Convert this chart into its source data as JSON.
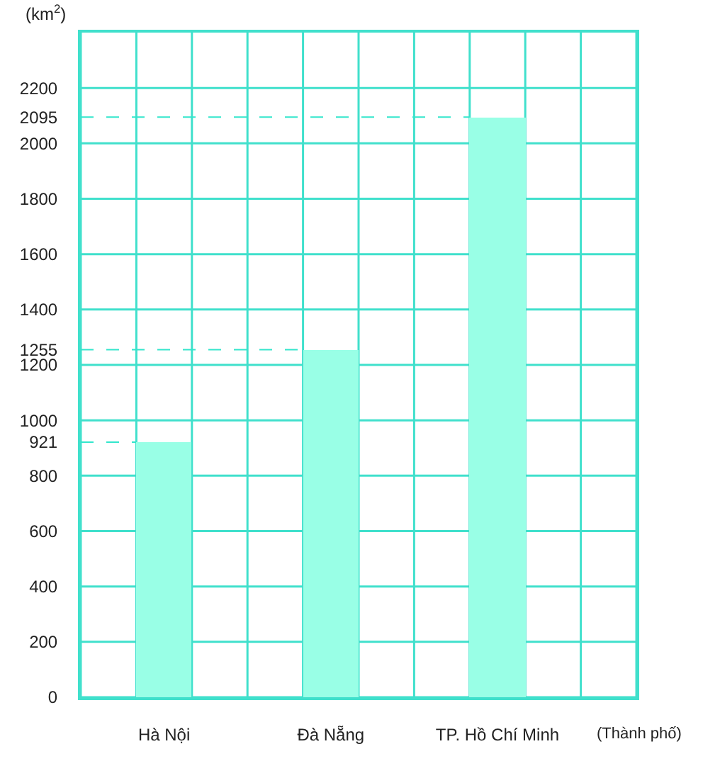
{
  "chart_data": {
    "type": "bar",
    "categories": [
      "Hà Nội",
      "Đà Nẵng",
      "TP. Hồ Chí Minh"
    ],
    "values": [
      921,
      1255,
      2095
    ],
    "color": "#99ffe6",
    "ylabel": "(km$^{2}$)",
    "xlabel": "(Thành phố)",
    "ylim": [
      0,
      2400
    ],
    "yticks": [
      0,
      200,
      400,
      600,
      800,
      921,
      1000,
      1200,
      1255,
      1400,
      1600,
      1800,
      2000,
      2095,
      2200
    ],
    "grid": true,
    "ref_lines": [
      {
        "axis": "y",
        "value": 921,
        "label": null,
        "line_style": "dashed",
        "color": "#33e6cc"
      },
      {
        "axis": "y",
        "value": 1255,
        "label": null,
        "line_style": "dashed",
        "color": "#33e6cc"
      },
      {
        "axis": "y",
        "value": 2095,
        "label": null,
        "line_style": "dashed",
        "color": "#33e6cc"
      }
    ]
  }
}
